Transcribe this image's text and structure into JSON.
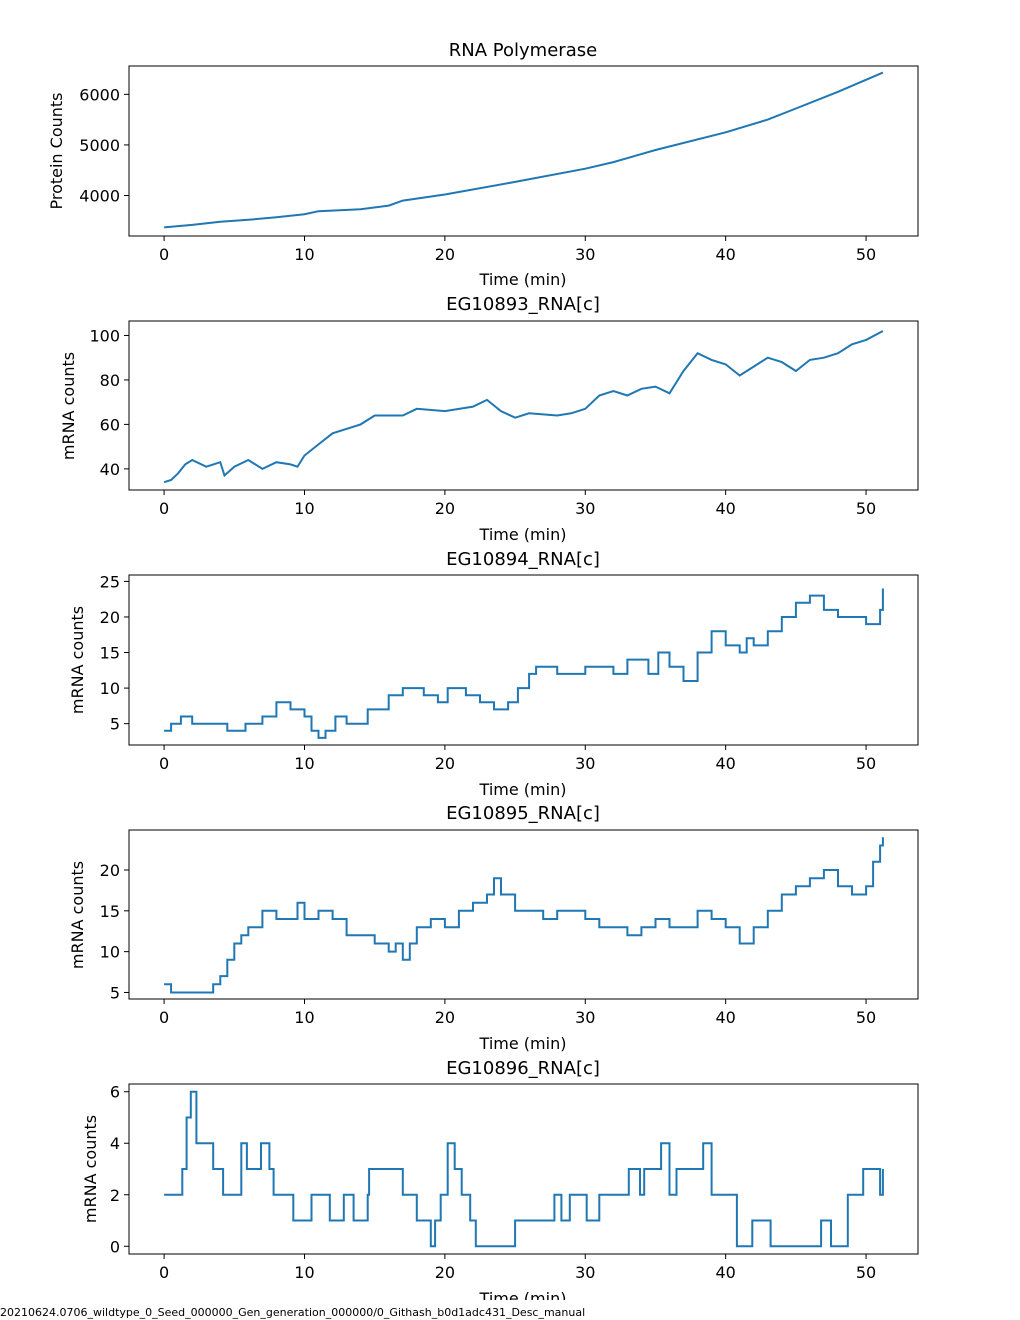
{
  "footer": "20210624.0706_wildtype_0_Seed_000000_Gen_generation_000000/0_Githash_b0d1adc431_Desc_manual",
  "chart_data": [
    {
      "type": "line",
      "title": "RNA Polymerase",
      "xlabel": "Time (min)",
      "ylabel": "Protein Counts",
      "xlim": [
        -2.5,
        53.7
      ],
      "ylim": [
        3200,
        6560
      ],
      "xticks": [
        0,
        10,
        20,
        30,
        40,
        50
      ],
      "yticks": [
        4000,
        5000,
        6000
      ],
      "color": "#1f77b4",
      "step": false,
      "x": [
        0,
        2,
        4,
        6,
        8,
        10,
        11,
        14,
        16,
        17,
        20,
        25,
        30,
        32,
        35,
        40,
        43,
        45,
        48,
        51.2
      ],
      "y": [
        3370,
        3420,
        3480,
        3520,
        3570,
        3630,
        3690,
        3730,
        3800,
        3900,
        4020,
        4270,
        4530,
        4660,
        4900,
        5250,
        5500,
        5720,
        6050,
        6430
      ]
    },
    {
      "type": "line",
      "title": "EG10893_RNA[c]",
      "xlabel": "Time (min)",
      "ylabel": "mRNA counts",
      "xlim": [
        -2.5,
        53.7
      ],
      "ylim": [
        30.5,
        106.5
      ],
      "xticks": [
        0,
        10,
        20,
        30,
        40,
        50
      ],
      "yticks": [
        40,
        60,
        80,
        100
      ],
      "color": "#1f77b4",
      "step": false,
      "x": [
        0,
        0.5,
        1,
        1.5,
        2,
        3,
        4,
        4.3,
        5,
        6,
        7,
        8,
        9,
        9.5,
        10,
        11,
        12,
        14,
        15,
        17,
        18,
        20,
        22,
        23,
        24,
        25,
        26,
        28,
        29,
        30,
        31,
        32,
        33,
        34,
        35,
        36,
        37,
        38,
        39,
        40,
        41,
        42,
        43,
        44,
        45,
        46,
        47,
        48,
        49,
        50,
        51.2
      ],
      "y": [
        34,
        35,
        38,
        42,
        44,
        41,
        43,
        37,
        41,
        44,
        40,
        43,
        42,
        41,
        46,
        51,
        56,
        60,
        64,
        64,
        67,
        66,
        68,
        71,
        66,
        63,
        65,
        64,
        65,
        67,
        73,
        75,
        73,
        76,
        77,
        74,
        84,
        92,
        89,
        87,
        82,
        86,
        90,
        88,
        84,
        89,
        90,
        92,
        96,
        98,
        102
      ]
    },
    {
      "type": "line",
      "title": "EG10894_RNA[c]",
      "xlabel": "Time (min)",
      "ylabel": "mRNA counts",
      "xlim": [
        -2.5,
        53.7
      ],
      "ylim": [
        2.0,
        25.9
      ],
      "xticks": [
        0,
        10,
        20,
        30,
        40,
        50
      ],
      "yticks": [
        5,
        10,
        15,
        20,
        25
      ],
      "color": "#1f77b4",
      "step": true,
      "x": [
        0,
        0.5,
        1.2,
        2,
        4.5,
        5.8,
        7,
        8,
        9,
        10,
        10.5,
        11,
        11.5,
        12.2,
        13,
        14.5,
        16,
        17,
        18.5,
        19.5,
        20.2,
        21.5,
        22.5,
        23.5,
        24.5,
        25.2,
        26,
        26.5,
        28,
        30,
        32,
        33,
        34.5,
        35.2,
        36,
        37,
        38,
        39,
        40,
        41,
        41.5,
        42,
        43,
        44,
        45,
        46,
        47,
        48,
        49,
        50,
        51,
        51.2
      ],
      "y": [
        4,
        5,
        6,
        5,
        4,
        5,
        6,
        8,
        7,
        6,
        4,
        3,
        4,
        6,
        5,
        7,
        9,
        10,
        9,
        8,
        10,
        9,
        8,
        7,
        8,
        10,
        12,
        13,
        12,
        13,
        12,
        14,
        12,
        15,
        13,
        11,
        15,
        18,
        16,
        15,
        17,
        16,
        18,
        20,
        22,
        23,
        21,
        20,
        20,
        19,
        21,
        24
      ]
    },
    {
      "type": "line",
      "title": "EG10895_RNA[c]",
      "xlabel": "Time (min)",
      "ylabel": "mRNA counts",
      "xlim": [
        -2.5,
        53.7
      ],
      "ylim": [
        4.2,
        24.9
      ],
      "xticks": [
        0,
        10,
        20,
        30,
        40,
        50
      ],
      "yticks": [
        5,
        10,
        15,
        20
      ],
      "color": "#1f77b4",
      "step": true,
      "x": [
        0,
        0.5,
        3,
        3.5,
        4,
        4.5,
        5,
        5.5,
        6,
        7,
        8,
        9,
        9.5,
        10,
        11,
        12,
        13,
        14,
        15,
        16,
        16.5,
        17,
        17.5,
        18,
        19,
        20,
        21,
        22,
        23,
        23.5,
        24,
        25,
        26,
        27,
        28,
        29,
        30,
        31,
        32,
        33,
        34,
        35,
        36,
        37,
        38,
        39,
        40,
        41,
        42,
        43,
        44,
        45,
        46,
        47,
        48,
        49,
        50,
        50.5,
        51,
        51.2
      ],
      "y": [
        6,
        5,
        5,
        6,
        7,
        9,
        11,
        12,
        13,
        15,
        14,
        14,
        16,
        14,
        15,
        14,
        12,
        12,
        11,
        10,
        11,
        9,
        11,
        13,
        14,
        13,
        15,
        16,
        17,
        19,
        17,
        15,
        15,
        14,
        15,
        15,
        14,
        13,
        13,
        12,
        13,
        14,
        13,
        13,
        15,
        14,
        13,
        11,
        13,
        15,
        17,
        18,
        19,
        20,
        18,
        17,
        18,
        21,
        23,
        24
      ]
    },
    {
      "type": "line",
      "title": "EG10896_RNA[c]",
      "xlabel": "Time (min)",
      "ylabel": "mRNA counts",
      "xlim": [
        -2.5,
        53.7
      ],
      "ylim": [
        -0.3,
        6.3
      ],
      "xticks": [
        0,
        10,
        20,
        30,
        40,
        50
      ],
      "yticks": [
        0,
        2,
        4,
        6
      ],
      "color": "#1f77b4",
      "step": true,
      "x": [
        0,
        1,
        1.3,
        1.6,
        1.9,
        2.3,
        3.5,
        4.2,
        5.5,
        5.9,
        6.9,
        7.5,
        7.8,
        9.2,
        10.5,
        11,
        11.8,
        12.8,
        13.5,
        14.5,
        14.6,
        17,
        18,
        19,
        19.3,
        19.7,
        20.2,
        20.7,
        21.2,
        21.8,
        22.2,
        25,
        26.5,
        27.2,
        27.8,
        28.3,
        28.9,
        30.1,
        31,
        32,
        33.1,
        33.9,
        34.2,
        34.8,
        35.4,
        36,
        36.5,
        38,
        38.4,
        39,
        40,
        40.8,
        41.9,
        43.2,
        44.5,
        46.8,
        47.5,
        48.7,
        49.2,
        49.8,
        51,
        51.2
      ],
      "y": [
        2,
        2,
        3,
        5,
        6,
        4,
        3,
        2,
        4,
        3,
        4,
        3,
        2,
        1,
        2,
        2,
        1,
        2,
        1,
        2,
        3,
        2,
        1,
        0,
        1,
        2,
        4,
        3,
        2,
        1,
        0,
        1,
        1,
        1,
        2,
        1,
        2,
        1,
        2,
        2,
        3,
        2,
        3,
        3,
        4,
        2,
        3,
        3,
        4,
        2,
        2,
        0,
        1,
        0,
        0,
        1,
        0,
        2,
        2,
        3,
        2,
        3
      ]
    }
  ]
}
